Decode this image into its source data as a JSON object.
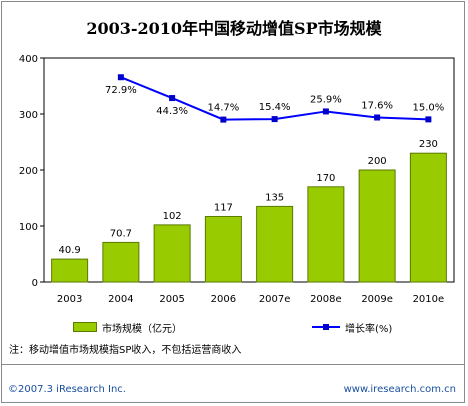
{
  "title": "2003-2010年中国移动增值SP市场规模",
  "note": "注：移动增值市场规模指SP收入，不包括运营商收入",
  "footer": {
    "left": "©2007.3 iResearch Inc.",
    "right": "www.iresearch.com.cn"
  },
  "colors": {
    "bar": "#99cc00",
    "bar_border": "#5a7a00",
    "line": "#0000ff",
    "marker": "#0000cc"
  },
  "chart_data": {
    "type": "bar",
    "categories": [
      "2003",
      "2004",
      "2005",
      "2006",
      "2007e",
      "2008e",
      "2009e",
      "2010e"
    ],
    "ylim": [
      0,
      400
    ],
    "yticks": [
      0,
      100,
      200,
      300,
      400
    ],
    "series": [
      {
        "name": "市场规模（亿元）",
        "type": "bar",
        "values": [
          40.9,
          70.7,
          102,
          117,
          135,
          170,
          200,
          230
        ],
        "labels": [
          "40.9",
          "70.7",
          "102",
          "117",
          "135",
          "170",
          "200",
          "230"
        ]
      },
      {
        "name": "增长率(%)",
        "type": "line",
        "values": [
          null,
          72.9,
          44.3,
          14.7,
          15.4,
          25.9,
          17.6,
          15.0
        ],
        "labels": [
          "",
          "72.9%",
          "44.3%",
          "14.7%",
          "15.4%",
          "25.9%",
          "17.6%",
          "15.0%"
        ]
      }
    ],
    "grid": false,
    "legend": "bottom"
  }
}
